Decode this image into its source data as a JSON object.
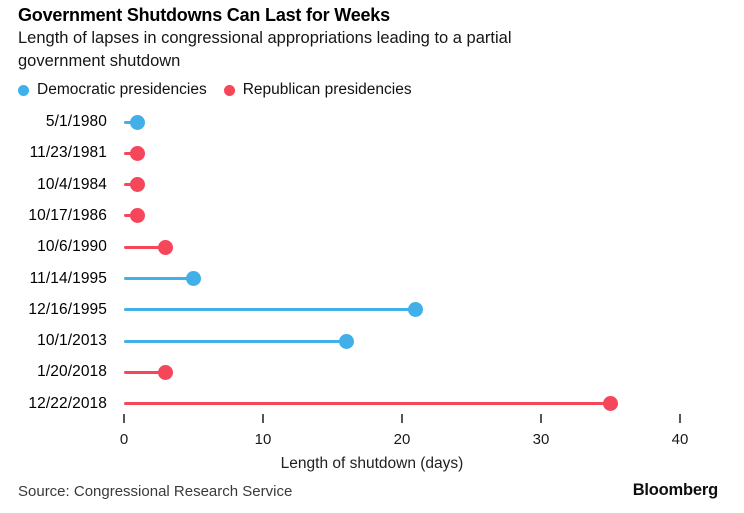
{
  "header": {
    "title": "Government Shutdowns Can Last for Weeks",
    "subtitle": "Length of lapses in congressional appropriations leading to a partial\ngovernment shutdown"
  },
  "legend": {
    "items": [
      {
        "label": "Democratic presidencies",
        "party": "democratic"
      },
      {
        "label": "Republican presidencies",
        "party": "republican"
      }
    ]
  },
  "chart_data": {
    "type": "bar",
    "variant": "lollipop-horizontal",
    "title": "Government Shutdowns Can Last for Weeks",
    "subtitle": "Length of lapses in congressional appropriations leading to a partial government shutdown",
    "categories": [
      "5/1/1980",
      "11/23/1981",
      "10/4/1984",
      "10/17/1986",
      "10/6/1990",
      "11/14/1995",
      "12/16/1995",
      "10/1/2013",
      "1/20/2018",
      "12/22/2018"
    ],
    "values": [
      1,
      1,
      1,
      1,
      3,
      5,
      21,
      16,
      3,
      35
    ],
    "parties": [
      "democratic",
      "republican",
      "republican",
      "republican",
      "republican",
      "democratic",
      "democratic",
      "democratic",
      "republican",
      "republican"
    ],
    "xlabel": "Length of shutdown (days)",
    "xlim": [
      0,
      40
    ],
    "xticks": [
      0,
      10,
      20,
      30,
      40
    ],
    "grid": false,
    "legend_position": "top-left",
    "colors": {
      "democratic": "#42b0e8",
      "republican": "#f6465a"
    }
  },
  "footer": {
    "source": "Source: Congressional Research Service",
    "brand": "Bloomberg"
  }
}
